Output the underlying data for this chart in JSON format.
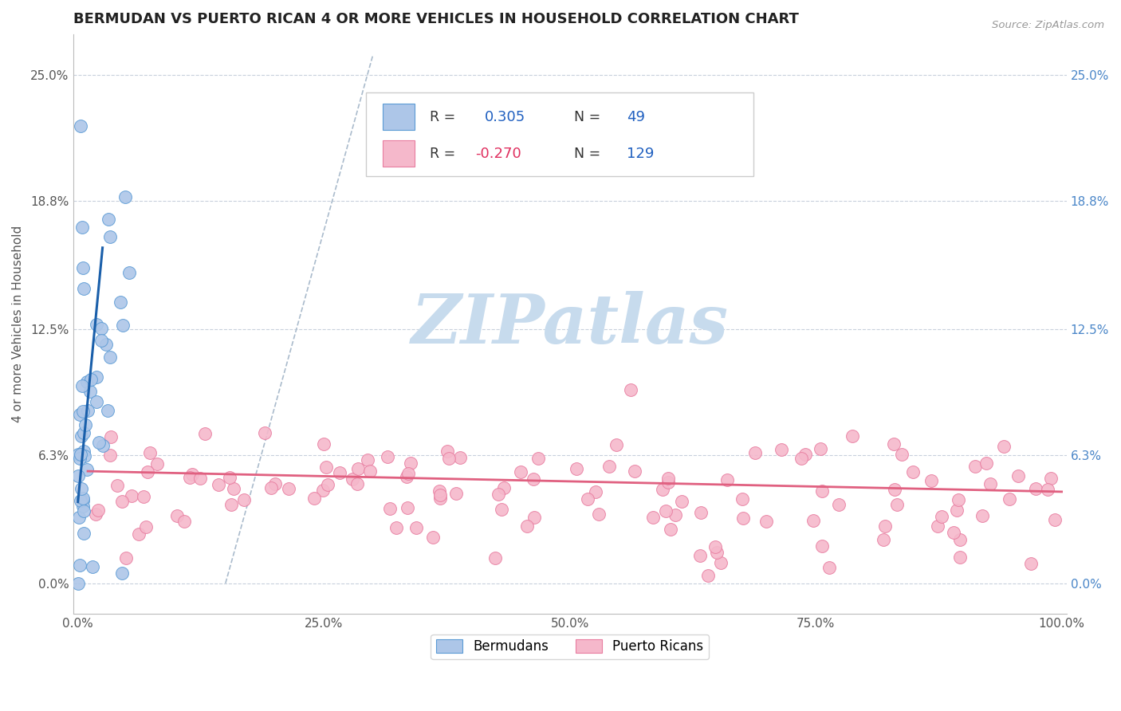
{
  "title": "BERMUDAN VS PUERTO RICAN 4 OR MORE VEHICLES IN HOUSEHOLD CORRELATION CHART",
  "source": "Source: ZipAtlas.com",
  "ylabel": "4 or more Vehicles in Household",
  "xlabel": "",
  "xlim": [
    -0.005,
    1.005
  ],
  "ylim": [
    -0.015,
    0.27
  ],
  "xticks": [
    0.0,
    0.25,
    0.5,
    0.75,
    1.0
  ],
  "xtick_labels": [
    "0.0%",
    "25.0%",
    "50.0%",
    "75.0%",
    "100.0%"
  ],
  "yticks": [
    0.0,
    0.063,
    0.125,
    0.188,
    0.25
  ],
  "ytick_labels": [
    "0.0%",
    "6.3%",
    "12.5%",
    "18.8%",
    "25.0%"
  ],
  "bermuda_color": "#adc6e8",
  "bermuda_edge": "#5b9bd5",
  "puertorico_color": "#f5b8cb",
  "puertorico_edge": "#e87da0",
  "trend_blue": "#1a5faa",
  "trend_pink": "#e06080",
  "watermark": "ZIPatlas",
  "watermark_color_r": 0.78,
  "watermark_color_g": 0.86,
  "watermark_color_b": 0.93,
  "legend_R_bermuda": "0.305",
  "legend_N_bermuda": "49",
  "legend_R_puertorico": "-0.270",
  "legend_N_puertorico": "129",
  "background_color": "#ffffff",
  "grid_color": "#c8d0dc",
  "dashed_line_color": "#aabbcc",
  "title_color": "#222222",
  "source_color": "#999999",
  "tick_color": "#555555",
  "right_tick_color": "#4a86c8",
  "legend_text_color": "#333333",
  "legend_val_color_blue": "#2060c0",
  "legend_val_color_pink": "#e03060"
}
